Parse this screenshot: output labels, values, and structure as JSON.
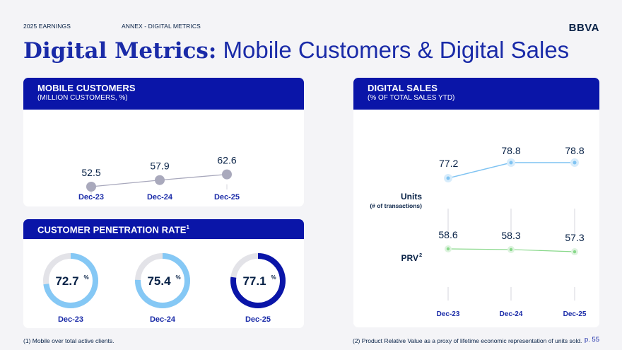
{
  "header": {
    "section": "2025 EARNINGS",
    "annex": "ANNEX - DIGITAL METRICS",
    "logo_text": "BBVA",
    "title_bold": "Digital Metrics:",
    "title_rest": "Mobile Customers & Digital Sales"
  },
  "mobile_card": {
    "title": "MOBILE CUSTOMERS",
    "subtitle": "(MILLION CUSTOMERS, %)"
  },
  "penetration_card": {
    "title": "CUSTOMER PENETRATION RATE",
    "superscript": "1"
  },
  "digital_card": {
    "title": "DIGITAL SALES",
    "subtitle": "(% OF TOTAL SALES YTD)",
    "units_label": "Units",
    "units_sublabel": "(# of transactions)",
    "prv_label": "PRV",
    "prv_superscript": "2"
  },
  "footer": {
    "footnote1": "(1) Mobile over total active clients.",
    "footnote2": "(2) Product Relative Value as a proxy of lifetime economic representation of units sold.",
    "page": "p. 55"
  },
  "colors": {
    "brand_dark": "#0A15A8",
    "title_blue": "#1A2BA8",
    "units_line": "#7FC3F2",
    "prv_line": "#88D88A",
    "mobile_line": "#A8A8BC",
    "donut_light": "#85C8F5",
    "donut_dark": "#0A15A8",
    "donut_track": "#E3E3E8"
  },
  "chart_data": [
    {
      "type": "line",
      "categories": [
        "Dec-23",
        "Dec-24",
        "Dec-25"
      ],
      "series": [
        {
          "values": [
            52.5,
            57.9,
            62.6
          ]
        }
      ]
    },
    {
      "type": "pie",
      "categories": [
        "Dec-23",
        "Dec-24",
        "Dec-25"
      ],
      "values": [
        72.7,
        75.4,
        77.1
      ],
      "unit": "%"
    },
    {
      "type": "line",
      "categories": [
        "Dec-23",
        "Dec-24",
        "Dec-25"
      ],
      "series": [
        {
          "name": "Units",
          "values": [
            77.2,
            78.8,
            78.8
          ]
        },
        {
          "name": "PRV",
          "values": [
            58.6,
            58.3,
            57.3
          ]
        }
      ]
    }
  ]
}
